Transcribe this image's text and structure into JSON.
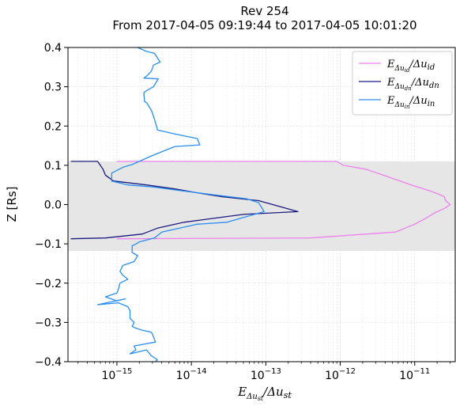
{
  "chart_data": {
    "type": "line",
    "title": "Rev 254",
    "subtitle": "From 2017-04-05 09:19:44 to 2017-04-05 10:01:20",
    "xlabel": "EΔust/Δust",
    "ylabel": "Z [Rs]",
    "x_scale": "log",
    "xlim": [
      2.2e-16,
      3.5e-11
    ],
    "ylim": [
      -0.4,
      0.4
    ],
    "x_ticks": [
      {
        "value": 1e-15,
        "label": "10−15"
      },
      {
        "value": 1e-14,
        "label": "10−14"
      },
      {
        "value": 1e-13,
        "label": "10−13"
      },
      {
        "value": 1e-12,
        "label": "10−12"
      },
      {
        "value": 1e-11,
        "label": "10−11"
      }
    ],
    "y_ticks": [
      {
        "value": 0.4,
        "label": "0.4"
      },
      {
        "value": 0.3,
        "label": "0.3"
      },
      {
        "value": 0.2,
        "label": "0.2"
      },
      {
        "value": 0.1,
        "label": "0.1"
      },
      {
        "value": 0.0,
        "label": "0.0"
      },
      {
        "value": -0.1,
        "label": "−0.1"
      },
      {
        "value": -0.2,
        "label": "−0.2"
      },
      {
        "value": -0.3,
        "label": "−0.3"
      },
      {
        "value": -0.4,
        "label": "−0.4"
      }
    ],
    "grid": true,
    "legend_position": "top-right",
    "shaded_band": {
      "y_min": -0.118,
      "y_max": 0.11,
      "color": "#e6e6e6"
    },
    "series": [
      {
        "name": "EΔuid/Δuid",
        "legend": {
          "base": "E",
          "sub": "Δu",
          "subsub": "id",
          "mid": "/Δu",
          "tail": "id"
        },
        "color": "#ee82ee",
        "points": [
          [
            1e-15,
            0.11
          ],
          [
            9e-13,
            0.11
          ],
          [
            1.1e-12,
            0.1
          ],
          [
            2.2e-12,
            0.09
          ],
          [
            4.5e-12,
            0.07
          ],
          [
            9e-12,
            0.05
          ],
          [
            1.6e-11,
            0.035
          ],
          [
            2.2e-11,
            0.025
          ],
          [
            2.5e-11,
            0.02
          ],
          [
            2.6e-11,
            0.01
          ],
          [
            3e-11,
            0.0
          ],
          [
            2.5e-11,
            -0.01
          ],
          [
            1.9e-11,
            -0.02
          ],
          [
            1.4e-11,
            -0.035
          ],
          [
            1e-11,
            -0.05
          ],
          [
            5.5e-12,
            -0.07
          ],
          [
            4e-13,
            -0.085
          ],
          [
            1e-15,
            -0.087
          ]
        ]
      },
      {
        "name": "EΔudn/Δudn",
        "legend": {
          "base": "E",
          "sub": "Δu",
          "subsub": "dn",
          "mid": "/Δu",
          "tail": "dn"
        },
        "color": "#1a1a80",
        "points": [
          [
            2.4e-16,
            0.11
          ],
          [
            5.5e-16,
            0.11
          ],
          [
            6.5e-16,
            0.09
          ],
          [
            7e-16,
            0.075
          ],
          [
            9e-16,
            0.06
          ],
          [
            2.5e-15,
            0.05
          ],
          [
            6e-15,
            0.04
          ],
          [
            1.2e-14,
            0.03
          ],
          [
            2.6e-14,
            0.02
          ],
          [
            8e-14,
            0.01
          ],
          [
            2.7e-13,
            -0.018
          ],
          [
            5e-14,
            -0.025
          ],
          [
            8e-15,
            -0.045
          ],
          [
            3.5e-15,
            -0.06
          ],
          [
            2.2e-15,
            -0.075
          ],
          [
            7e-16,
            -0.085
          ],
          [
            2.4e-16,
            -0.087
          ]
        ]
      },
      {
        "name": "EΔuin/Δuin",
        "legend": {
          "base": "E",
          "sub": "Δu",
          "subsub": "in",
          "mid": "/Δu",
          "tail": "in"
        },
        "color": "#2a8ef0",
        "points": [
          [
            1.9e-15,
            0.4
          ],
          [
            2.5e-15,
            0.39
          ],
          [
            3.2e-15,
            0.385
          ],
          [
            3.8e-15,
            0.363
          ],
          [
            3.1e-15,
            0.355
          ],
          [
            2.9e-15,
            0.34
          ],
          [
            2.6e-15,
            0.33
          ],
          [
            2.3e-15,
            0.322
          ],
          [
            3.6e-15,
            0.32
          ],
          [
            3.1e-15,
            0.3
          ],
          [
            2.5e-15,
            0.29
          ],
          [
            2.3e-15,
            0.285
          ],
          [
            2.35e-15,
            0.262
          ],
          [
            2.5e-15,
            0.26
          ],
          [
            2.9e-15,
            0.24
          ],
          [
            3.1e-15,
            0.225
          ],
          [
            3.4e-15,
            0.2
          ],
          [
            3.5e-15,
            0.19
          ],
          [
            6e-15,
            0.18
          ],
          [
            1.2e-14,
            0.168
          ],
          [
            1.3e-14,
            0.152
          ],
          [
            6e-15,
            0.148
          ],
          [
            3e-15,
            0.125
          ],
          [
            1.6e-15,
            0.102
          ],
          [
            1.2e-15,
            0.095
          ],
          [
            8.5e-16,
            0.08
          ],
          [
            8.5e-16,
            0.06
          ],
          [
            1.4e-15,
            0.05
          ],
          [
            3e-15,
            0.045
          ],
          [
            7.5e-15,
            0.035
          ],
          [
            2e-14,
            0.025
          ],
          [
            5.5e-14,
            0.015
          ],
          [
            8e-14,
            0.005
          ],
          [
            9.5e-14,
            -0.018
          ],
          [
            3e-14,
            -0.045
          ],
          [
            1.2e-14,
            -0.05
          ],
          [
            4e-15,
            -0.07
          ],
          [
            3.2e-15,
            -0.085
          ],
          [
            2.5e-15,
            -0.09
          ],
          [
            2e-15,
            -0.095
          ],
          [
            1.9e-15,
            -0.098
          ],
          [
            1.6e-15,
            -0.105
          ],
          [
            1.6e-15,
            -0.122
          ],
          [
            1.9e-15,
            -0.13
          ],
          [
            1.7e-15,
            -0.145
          ],
          [
            1.2e-15,
            -0.155
          ],
          [
            1.1e-15,
            -0.17
          ],
          [
            1.2e-15,
            -0.18
          ],
          [
            1.4e-15,
            -0.19
          ],
          [
            1.1e-15,
            -0.2
          ],
          [
            1.05e-15,
            -0.215
          ],
          [
            1e-15,
            -0.225
          ],
          [
            7e-16,
            -0.235
          ],
          [
            1e-15,
            -0.245
          ],
          [
            1.3e-15,
            -0.24
          ],
          [
            5.5e-16,
            -0.255
          ],
          [
            1.05e-15,
            -0.25
          ],
          [
            1.4e-15,
            -0.26
          ],
          [
            1.5e-15,
            -0.27
          ],
          [
            1.5e-15,
            -0.29
          ],
          [
            1.7e-15,
            -0.3
          ],
          [
            1.6e-15,
            -0.31
          ],
          [
            1.8e-15,
            -0.315
          ],
          [
            2.2e-15,
            -0.32
          ],
          [
            2.9e-15,
            -0.325
          ],
          [
            3e-15,
            -0.33
          ],
          [
            3.3e-15,
            -0.35
          ],
          [
            1.7e-15,
            -0.36
          ],
          [
            1.8e-15,
            -0.37
          ],
          [
            1.5e-15,
            -0.38
          ],
          [
            2.5e-15,
            -0.37
          ],
          [
            2.9e-15,
            -0.385
          ],
          [
            3.5e-15,
            -0.395
          ],
          [
            3.3e-15,
            -0.4
          ]
        ]
      }
    ]
  }
}
